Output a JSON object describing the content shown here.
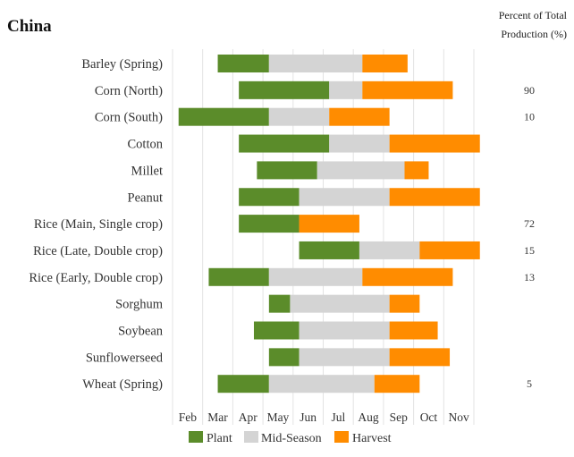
{
  "chart_data": {
    "type": "bar",
    "title": "China",
    "header": [
      "Percent of Total",
      "Production (%)"
    ],
    "months": [
      "Feb",
      "Mar",
      "Apr",
      "May",
      "Jun",
      "Jul",
      "Aug",
      "Sep",
      "Oct",
      "Nov"
    ],
    "series": [
      {
        "name": "Plant",
        "color": "#5b8c2a"
      },
      {
        "name": "Mid-Season",
        "color": "#d4d4d4"
      },
      {
        "name": "Harvest",
        "color": "#ff8c00"
      }
    ],
    "crops": [
      {
        "name": "Barley (Spring)",
        "plant": [
          2.5,
          4.2
        ],
        "mid": [
          4.2,
          7.3
        ],
        "harvest": [
          7.3,
          8.8
        ],
        "percent": ""
      },
      {
        "name": "Corn (North)",
        "plant": [
          3.2,
          6.2
        ],
        "mid": [
          6.2,
          7.3
        ],
        "harvest": [
          7.3,
          10.3
        ],
        "percent": "90"
      },
      {
        "name": "Corn (South)",
        "plant": [
          1.2,
          4.2
        ],
        "mid": [
          4.2,
          6.2
        ],
        "harvest": [
          6.2,
          8.2
        ],
        "percent": "10"
      },
      {
        "name": "Cotton",
        "plant": [
          3.2,
          6.2
        ],
        "mid": [
          6.2,
          8.2
        ],
        "harvest": [
          8.2,
          11.2
        ],
        "percent": ""
      },
      {
        "name": "Millet",
        "plant": [
          3.8,
          5.8
        ],
        "mid": [
          5.8,
          8.7
        ],
        "harvest": [
          8.7,
          9.5
        ],
        "percent": ""
      },
      {
        "name": "Peanut",
        "plant": [
          3.2,
          5.2
        ],
        "mid": [
          5.2,
          8.2
        ],
        "harvest": [
          8.2,
          11.2
        ],
        "percent": ""
      },
      {
        "name": "Rice (Main, Single crop)",
        "plant": [
          3.2,
          5.2
        ],
        "mid": null,
        "harvest": [
          5.2,
          7.2
        ],
        "percent": "72"
      },
      {
        "name": "Rice (Late, Double crop)",
        "plant": [
          5.2,
          7.2
        ],
        "mid": [
          7.2,
          9.2
        ],
        "harvest": [
          9.2,
          11.2
        ],
        "percent": "15"
      },
      {
        "name": "Rice (Early, Double crop)",
        "plant": [
          2.2,
          4.2
        ],
        "mid": [
          4.2,
          7.3
        ],
        "harvest": [
          7.3,
          10.3
        ],
        "percent": "13"
      },
      {
        "name": "Sorghum",
        "plant": [
          4.2,
          4.9
        ],
        "mid": [
          4.9,
          8.2
        ],
        "harvest": [
          8.2,
          9.2
        ],
        "percent": ""
      },
      {
        "name": "Soybean",
        "plant": [
          3.7,
          5.2
        ],
        "mid": [
          5.2,
          8.2
        ],
        "harvest": [
          8.2,
          9.8
        ],
        "percent": ""
      },
      {
        "name": "Sunflowerseed",
        "plant": [
          4.2,
          5.2
        ],
        "mid": [
          5.2,
          8.2
        ],
        "harvest": [
          8.2,
          10.2
        ],
        "percent": ""
      },
      {
        "name": "Wheat (Spring)",
        "plant": [
          2.5,
          4.2
        ],
        "mid": [
          4.2,
          7.7
        ],
        "harvest": [
          7.7,
          9.2
        ],
        "percent": "5"
      }
    ]
  }
}
